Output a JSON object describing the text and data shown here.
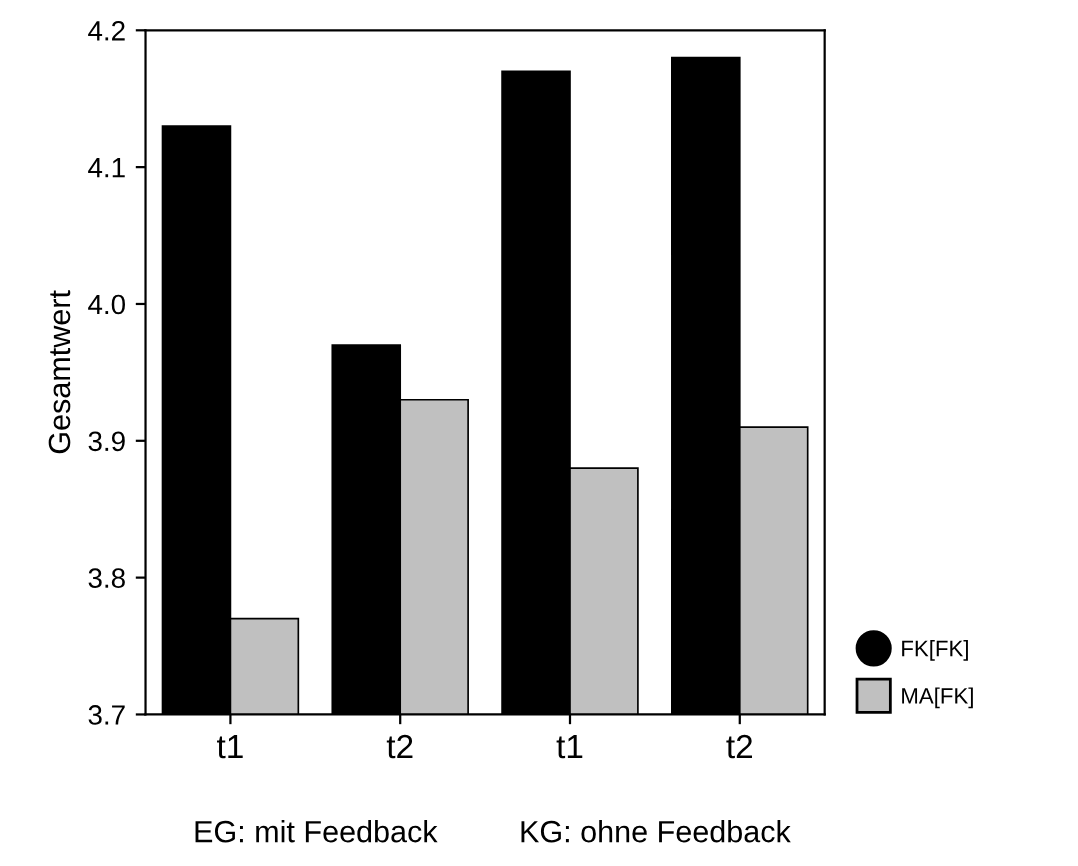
{
  "chart_data": {
    "type": "bar",
    "ylabel": "Gesamtwert",
    "categories": [
      "t1",
      "t2",
      "t1",
      "t2"
    ],
    "series": [
      {
        "name": "FK[FK]",
        "color": "#000000",
        "values": [
          4.13,
          3.97,
          4.17,
          4.18
        ]
      },
      {
        "name": "MA[FK]",
        "color": "#c0c0c0",
        "values": [
          3.77,
          3.93,
          3.88,
          3.91
        ]
      }
    ],
    "ylim": [
      3.7,
      4.2
    ],
    "yticks": [
      3.7,
      3.8,
      3.9,
      {
        "value": 4.0,
        "label": "4.0"
      },
      4.1,
      4.2
    ],
    "legend": "right",
    "grid": false,
    "annotations": [
      "EG: mit Feedback",
      "KG: ohne Feedback"
    ]
  }
}
